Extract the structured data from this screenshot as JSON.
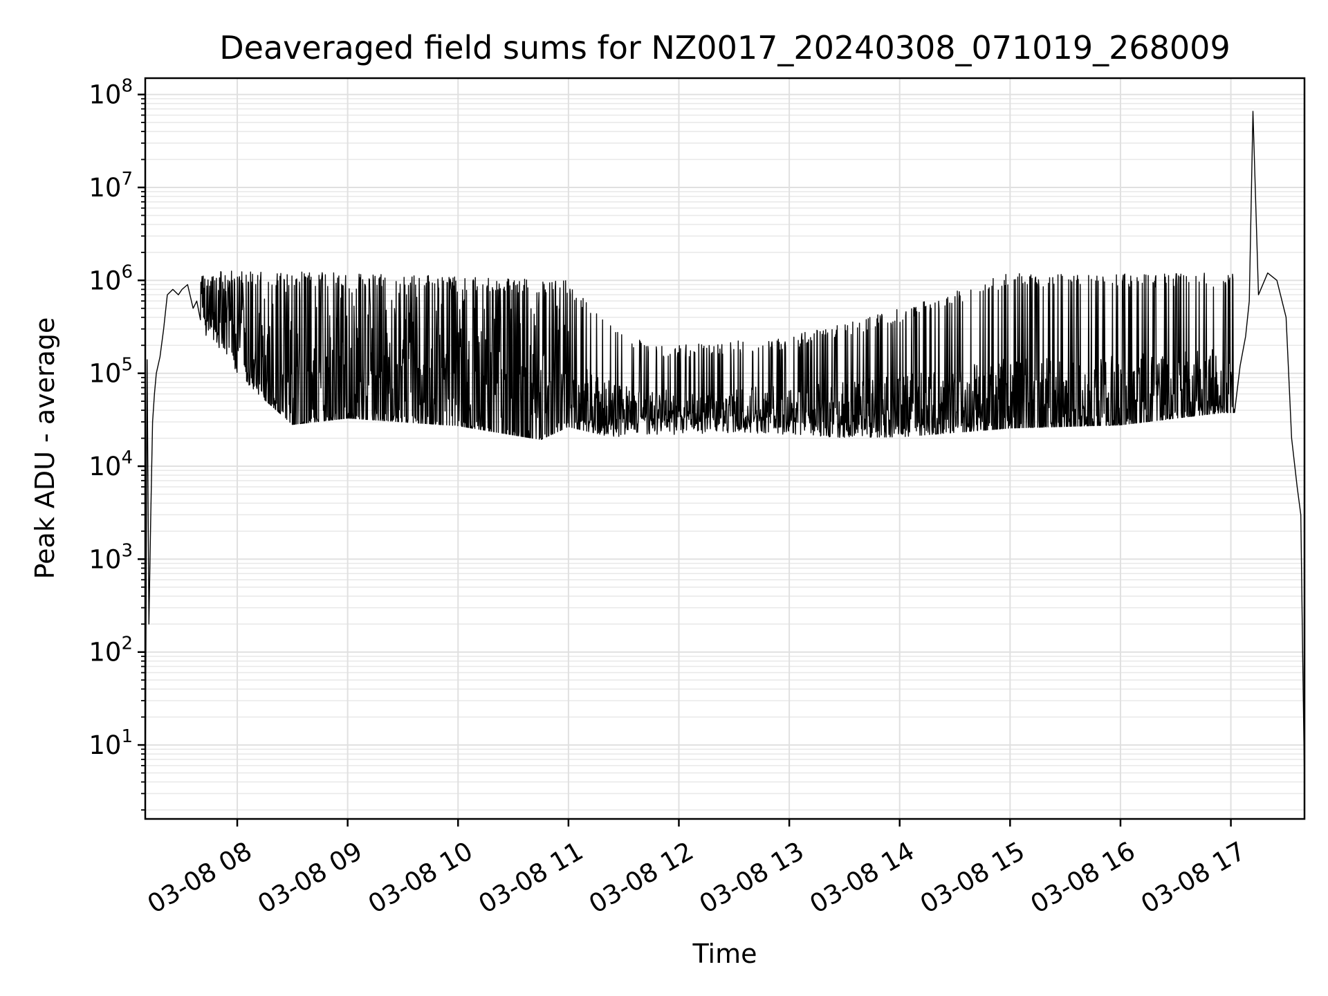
{
  "chart_data": {
    "type": "line",
    "title": "Deaveraged field sums for NZ0017_20240308_071019_268009",
    "xlabel": "Time",
    "ylabel": "Peak ADU - average",
    "yscale": "log",
    "ylim": [
      1.6,
      150000000
    ],
    "xlim": [
      "2024-03-08 07:10",
      "2024-03-08 17:40"
    ],
    "grid": true,
    "x_ticks": [
      {
        "value": "2024-03-08 08:00",
        "label": "03-08 08"
      },
      {
        "value": "2024-03-08 09:00",
        "label": "03-08 09"
      },
      {
        "value": "2024-03-08 10:00",
        "label": "03-08 10"
      },
      {
        "value": "2024-03-08 11:00",
        "label": "03-08 11"
      },
      {
        "value": "2024-03-08 12:00",
        "label": "03-08 12"
      },
      {
        "value": "2024-03-08 13:00",
        "label": "03-08 13"
      },
      {
        "value": "2024-03-08 14:00",
        "label": "03-08 14"
      },
      {
        "value": "2024-03-08 15:00",
        "label": "03-08 15"
      },
      {
        "value": "2024-03-08 16:00",
        "label": "03-08 16"
      },
      {
        "value": "2024-03-08 17:00",
        "label": "03-08 17"
      }
    ],
    "y_ticks": [
      {
        "value": 10,
        "base": "10",
        "exp": "1"
      },
      {
        "value": 100,
        "base": "10",
        "exp": "2"
      },
      {
        "value": 1000,
        "base": "10",
        "exp": "3"
      },
      {
        "value": 10000,
        "base": "10",
        "exp": "4"
      },
      {
        "value": 100000,
        "base": "10",
        "exp": "5"
      },
      {
        "value": 1000000,
        "base": "10",
        "exp": "6"
      },
      {
        "value": 10000000,
        "base": "10",
        "exp": "7"
      },
      {
        "value": 100000000,
        "base": "10",
        "exp": "8"
      }
    ],
    "series": [
      {
        "color": "#000000",
        "x": [
          "2024-03-08 07:10",
          "2024-03-08 07:11",
          "2024-03-08 07:12",
          "2024-03-08 07:13",
          "2024-03-08 07:14",
          "2024-03-08 07:15",
          "2024-03-08 07:16",
          "2024-03-08 07:18",
          "2024-03-08 07:20",
          "2024-03-08 07:22",
          "2024-03-08 07:25",
          "2024-03-08 07:28",
          "2024-03-08 07:30",
          "2024-03-08 07:33",
          "2024-03-08 07:36",
          "2024-03-08 07:38",
          "2024-03-08 07:40",
          "2024-03-08 07:44",
          "2024-03-08 07:48",
          "2024-03-08 07:52",
          "2024-03-08 07:56",
          "2024-03-08 08:00",
          "2024-03-08 08:05",
          "2024-03-08 08:10",
          "2024-03-08 08:15",
          "2024-03-08 08:20",
          "2024-03-08 08:30",
          "2024-03-08 08:45",
          "2024-03-08 09:00",
          "2024-03-08 09:30",
          "2024-03-08 10:00",
          "2024-03-08 10:30",
          "2024-03-08 11:00",
          "2024-03-08 11:20",
          "2024-03-08 11:40",
          "2024-03-08 12:00",
          "2024-03-08 13:00",
          "2024-03-08 14:00",
          "2024-03-08 15:00",
          "2024-03-08 16:00",
          "2024-03-08 16:30",
          "2024-03-08 16:45",
          "2024-03-08 16:55",
          "2024-03-08 17:00",
          "2024-03-08 17:05",
          "2024-03-08 17:08",
          "2024-03-08 17:10",
          "2024-03-08 17:12",
          "2024-03-08 17:15",
          "2024-03-08 17:20",
          "2024-03-08 17:25",
          "2024-03-08 17:30",
          "2024-03-08 17:33",
          "2024-03-08 17:36",
          "2024-03-08 17:38",
          "2024-03-08 17:39",
          "2024-03-08 17:40"
        ],
        "y": [
          2,
          140000,
          200,
          3000,
          30000,
          60000,
          100000,
          150000,
          300000,
          700000,
          800000,
          700000,
          800000,
          900000,
          500000,
          600000,
          400000,
          300000,
          200000,
          100000,
          60000,
          50000,
          40000,
          35000,
          35000,
          30000,
          30000,
          35000,
          35000,
          40000,
          35000,
          30000,
          30000,
          28000,
          27000,
          30000,
          30000,
          30000,
          30000,
          28000,
          30000,
          35000,
          45000,
          60000,
          120000,
          250000,
          600000,
          66000000,
          700000,
          1200000,
          1000000,
          400000,
          20000,
          6000,
          3000,
          100,
          4
        ]
      }
    ],
    "noise_band": {
      "start": "2024-03-08 07:40",
      "end": "2024-03-08 17:02",
      "upper_envelope": {
        "x": [
          "2024-03-08 07:40",
          "2024-03-08 08:00",
          "2024-03-08 09:00",
          "2024-03-08 10:00",
          "2024-03-08 11:00",
          "2024-03-08 11:25",
          "2024-03-08 11:45",
          "2024-03-08 12:00",
          "2024-03-08 13:00",
          "2024-03-08 14:00",
          "2024-03-08 15:00",
          "2024-03-08 16:00",
          "2024-03-08 17:00"
        ],
        "y": [
          1200000,
          1300000,
          1200000,
          1100000,
          1000000,
          300000,
          200000,
          200000,
          250000,
          500000,
          1200000,
          1200000,
          1200000
        ]
      },
      "lower_envelope": {
        "x": [
          "2024-03-08 07:40",
          "2024-03-08 08:00",
          "2024-03-08 08:30",
          "2024-03-08 09:00",
          "2024-03-08 10:00",
          "2024-03-08 10:45",
          "2024-03-08 11:00",
          "2024-03-08 12:00",
          "2024-03-08 13:00",
          "2024-03-08 14:00",
          "2024-03-08 15:00",
          "2024-03-08 16:00",
          "2024-03-08 16:55"
        ],
        "y": [
          300000,
          100000,
          20000,
          25000,
          20000,
          13000,
          20000,
          22000,
          22000,
          18000,
          18000,
          20000,
          30000
        ]
      }
    }
  }
}
